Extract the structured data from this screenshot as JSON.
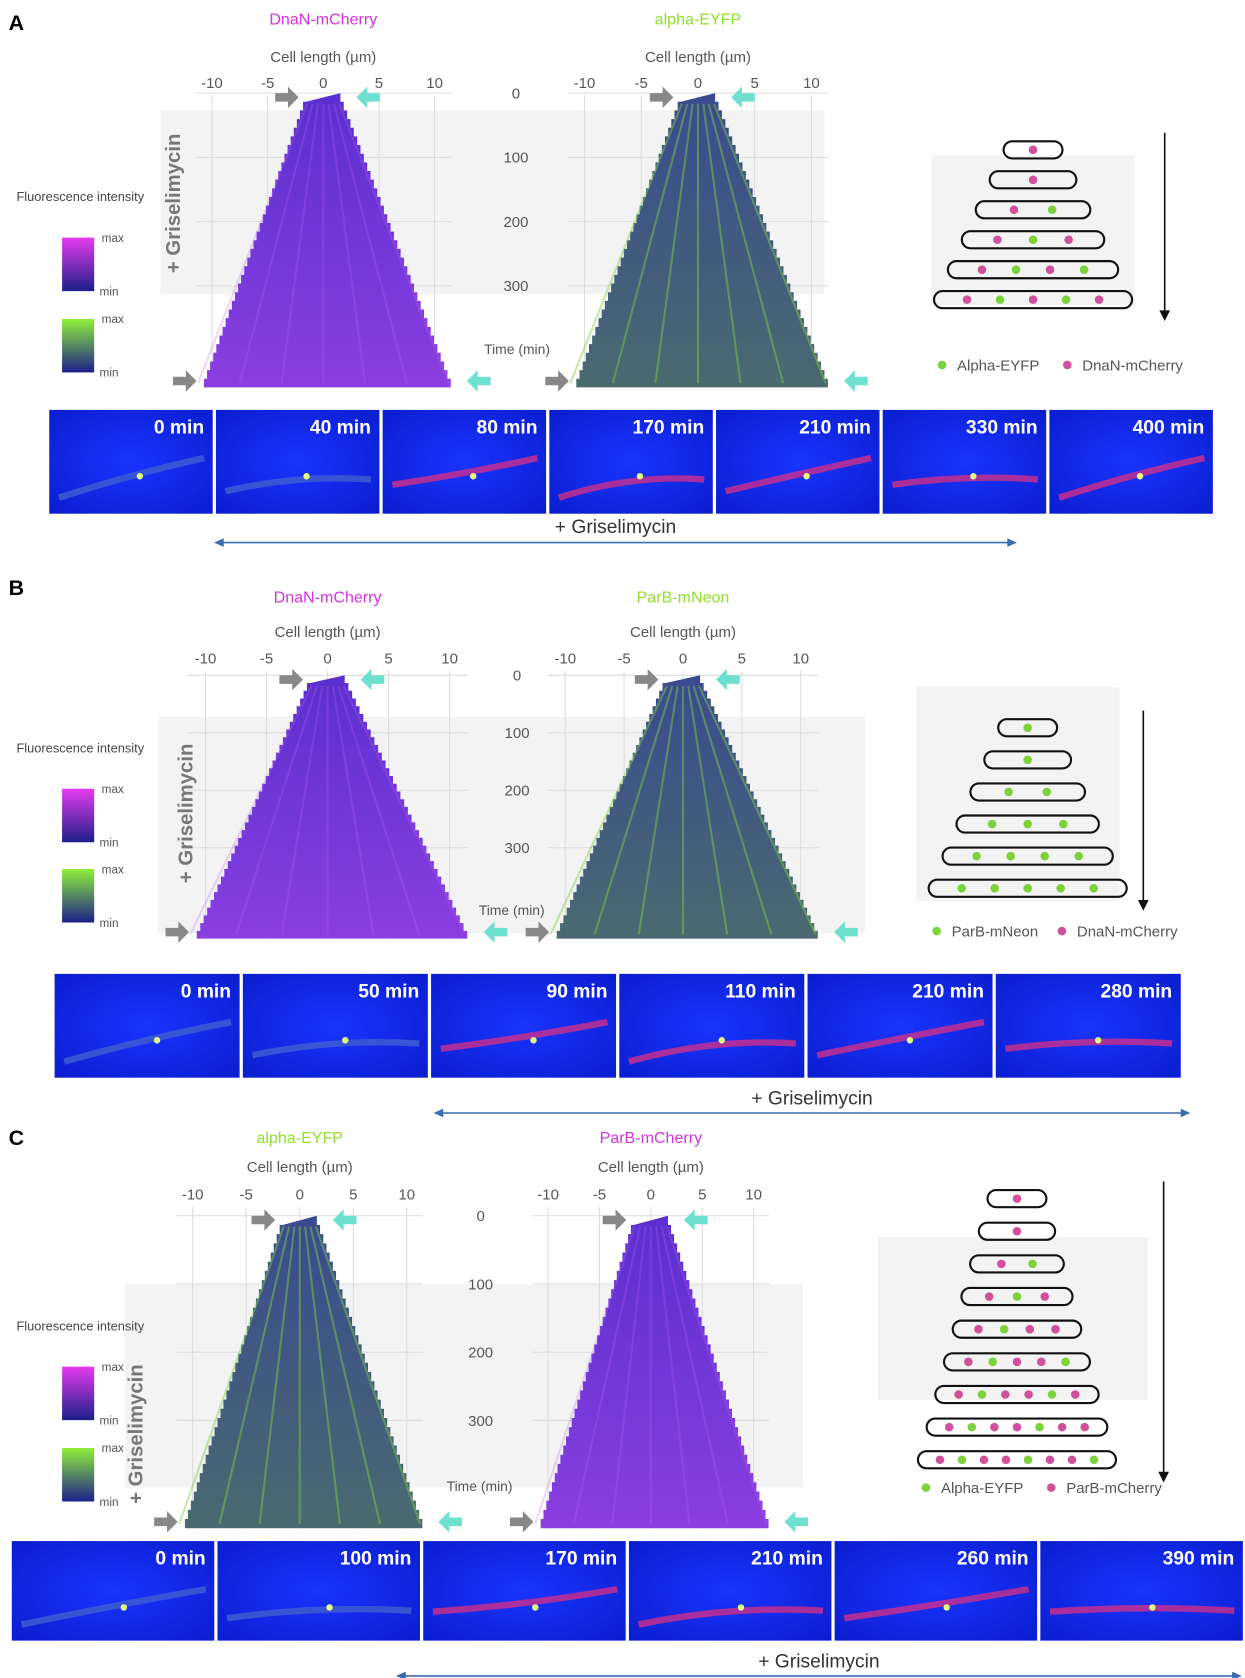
{
  "panels": [
    {
      "label": "A",
      "kymographs": [
        {
          "title": "DnaN-mCherry",
          "color": "#d633e0",
          "x_label": "Cell length (µm)",
          "x_ticks": [
            -10,
            -5,
            0,
            5,
            10
          ]
        },
        {
          "title": "alpha-EYFP",
          "color": "#8fe02a",
          "x_label": "Cell length (µm)",
          "x_ticks": [
            -10,
            -5,
            0,
            5,
            10
          ]
        }
      ],
      "time_ticks": [
        0,
        100,
        200,
        300
      ],
      "time_label": "Time (min)",
      "treatment_label": "+ Griselimycin",
      "intensity_title": "Fluorescence intensity",
      "colorbars": [
        {
          "max": "max",
          "min": "min"
        },
        {
          "max": "max",
          "min": "min"
        }
      ],
      "schematic_legend": [
        "Alpha-EYFP",
        "DnaN-mCherry"
      ],
      "frames": [
        "0 min",
        "40 min",
        "80  min",
        "170 min",
        "210 min",
        "330 min",
        "400 min"
      ],
      "timeline_label": "+ Griselimycin"
    },
    {
      "label": "B",
      "kymographs": [
        {
          "title": "DnaN-mCherry",
          "color": "#d633e0",
          "x_label": "Cell length (µm)",
          "x_ticks": [
            -10,
            -5,
            0,
            5,
            10
          ]
        },
        {
          "title": "ParB-mNeon",
          "color": "#8fe02a",
          "x_label": "Cell length (µm)",
          "x_ticks": [
            -10,
            -5,
            0,
            5,
            10
          ]
        }
      ],
      "time_ticks": [
        0,
        100,
        200,
        300
      ],
      "time_label": "Time (min)",
      "treatment_label": "+ Griselimycin",
      "intensity_title": "Fluorescence intensity",
      "colorbars": [
        {
          "max": "max",
          "min": "min"
        },
        {
          "max": "max",
          "min": "min"
        }
      ],
      "schematic_legend": [
        "ParB-mNeon",
        "DnaN-mCherry"
      ],
      "frames": [
        "0 min",
        "50 min",
        "90 min",
        "110 min",
        "210 min",
        "280 min"
      ],
      "timeline_label": "+ Griselimycin"
    },
    {
      "label": "C",
      "kymographs": [
        {
          "title": "alpha-EYFP",
          "color": "#8fe02a",
          "x_label": "Cell length (µm)",
          "x_ticks": [
            -10,
            -5,
            0,
            5,
            10
          ]
        },
        {
          "title": "ParB-mCherry",
          "color": "#d633e0",
          "x_label": "Cell length (µm)",
          "x_ticks": [
            -10,
            -5,
            0,
            5,
            10
          ]
        }
      ],
      "time_ticks": [
        0,
        100,
        200,
        300
      ],
      "time_label": "Time (min)",
      "treatment_label": "+ Griselimycin",
      "intensity_title": "Fluorescence intensity",
      "colorbars": [
        {
          "max": "max",
          "min": "min"
        },
        {
          "max": "max",
          "min": "min"
        }
      ],
      "schematic_legend": [
        "Alpha-EYFP",
        "ParB-mCherry"
      ],
      "frames": [
        "0 min",
        "100 min",
        "170 min",
        "210 min",
        "260 min",
        "390 min"
      ],
      "timeline_label": "+ Griselimycin"
    }
  ]
}
